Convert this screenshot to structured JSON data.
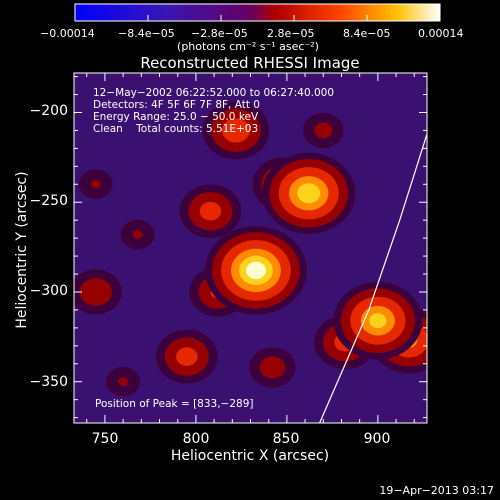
{
  "chart_data": {
    "type": "heatmap",
    "title": "Reconstructed RHESSI Image",
    "xlabel": "Heliocentric X (arcsec)",
    "ylabel": "Heliocentric Y (arcsec)",
    "xlim": [
      733,
      927
    ],
    "ylim": [
      -373,
      -178
    ],
    "x_ticks": [
      750,
      800,
      850,
      900
    ],
    "x_tick_labels": [
      "750",
      "800",
      "850",
      "900"
    ],
    "y_ticks": [
      -200,
      -250,
      -300,
      -350
    ],
    "y_tick_labels": [
      "−200",
      "−250",
      "−300",
      "−350"
    ],
    "colorbar": {
      "range": [
        -0.00014,
        0.00014
      ],
      "tick_labels": [
        "−0.00014",
        "−8.4e−05",
        "−2.8e−05",
        "2.8e−05",
        "8.4e−05",
        "0.00014"
      ],
      "unit_label": "(photons cm⁻² s⁻¹ asec⁻²)"
    },
    "annotations": [
      "12−May−2002 06:22:52.000 to 06:27:40.000",
      "Detectors: 4F 5F 6F 7F 8F, Att 0",
      "Energy Range: 25.0 − 50.0 keV",
      "Clean    Total counts: 5.51E+03"
    ],
    "peak_label": "Position of Peak = [833,−289]",
    "peak": [
      833,
      -289
    ],
    "hotspots": [
      {
        "x": 833,
        "y": -288,
        "value": 1.0
      },
      {
        "x": 862,
        "y": -245,
        "value": 0.9
      },
      {
        "x": 848,
        "y": -240,
        "value": 0.55
      },
      {
        "x": 822,
        "y": -210,
        "value": 0.6
      },
      {
        "x": 808,
        "y": -255,
        "value": 0.55
      },
      {
        "x": 812,
        "y": -300,
        "value": 0.5
      },
      {
        "x": 900,
        "y": -316,
        "value": 0.85
      },
      {
        "x": 917,
        "y": -327,
        "value": 0.7
      },
      {
        "x": 882,
        "y": -328,
        "value": 0.55
      },
      {
        "x": 745,
        "y": -300,
        "value": 0.45
      },
      {
        "x": 795,
        "y": -336,
        "value": 0.55
      },
      {
        "x": 842,
        "y": -342,
        "value": 0.4
      },
      {
        "x": 768,
        "y": -268,
        "value": 0.3
      },
      {
        "x": 870,
        "y": -210,
        "value": 0.35
      },
      {
        "x": 745,
        "y": -240,
        "value": 0.3
      },
      {
        "x": 760,
        "y": -350,
        "value": 0.3
      }
    ],
    "limb_curve": {
      "x": [
        868,
        880,
        895,
        912,
        927
      ],
      "y": [
        -373,
        -345,
        -310,
        -260,
        -212
      ]
    },
    "footer_date": "19−Apr−2013 03:17"
  }
}
